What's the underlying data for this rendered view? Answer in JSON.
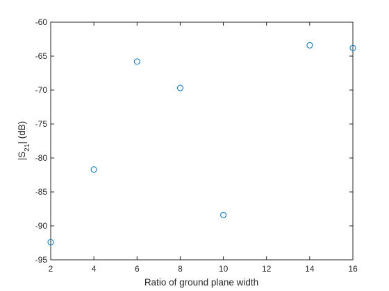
{
  "chart_data": {
    "type": "scatter",
    "title": "",
    "xlabel": "Ratio of ground plane width",
    "ylabel": {
      "prefix": "|S",
      "subscript": "21",
      "suffix": "| (dB)"
    },
    "xlim": [
      2,
      16
    ],
    "ylim": [
      -95,
      -60
    ],
    "xticks": [
      2,
      4,
      6,
      8,
      10,
      12,
      14,
      16
    ],
    "yticks": [
      -95,
      -90,
      -85,
      -80,
      -75,
      -70,
      -65,
      -60
    ],
    "grid": false,
    "box": true,
    "marker": "circle-open",
    "series": [
      {
        "color": "#0072BD",
        "points": [
          {
            "x": 2,
            "y": -92.4
          },
          {
            "x": 4,
            "y": -81.7
          },
          {
            "x": 6,
            "y": -65.8
          },
          {
            "x": 8,
            "y": -69.7
          },
          {
            "x": 10,
            "y": -88.4
          },
          {
            "x": 14,
            "y": -63.4
          },
          {
            "x": 16,
            "y": -63.8
          }
        ]
      }
    ]
  }
}
